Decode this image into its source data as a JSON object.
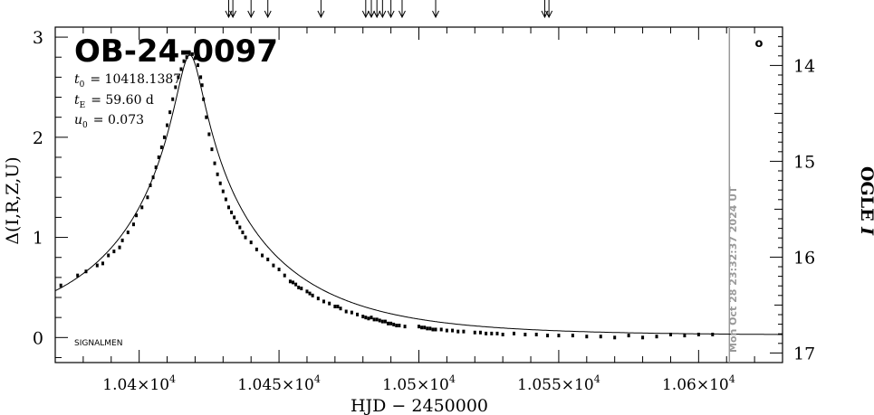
{
  "chart_data": {
    "type": "scatter",
    "title": "OB-24-0097",
    "params": [
      {
        "sym": "t",
        "sub": "0",
        "value": "= 10418.1387"
      },
      {
        "sym": "t",
        "sub": "E",
        "value": "= 59.60 d"
      },
      {
        "sym": "u",
        "sub": "0",
        "value": "= 0.073"
      }
    ],
    "xlabel": "HJD − 2450000",
    "ylabel": "Δ(I,R,Z,U)",
    "y2label_text": "OGLE ",
    "y2label_italic": "I",
    "xlim": [
      10370,
      10630
    ],
    "ylim": [
      -0.25,
      3.1
    ],
    "y2lim": [
      13.6,
      17.1
    ],
    "x_ticks": [
      {
        "value": 10400,
        "mantissa": "1.04×10",
        "exp": "4"
      },
      {
        "value": 10450,
        "mantissa": "1.045×10",
        "exp": "4"
      },
      {
        "value": 10500,
        "mantissa": "1.05×10",
        "exp": "4"
      },
      {
        "value": 10550,
        "mantissa": "1.055×10",
        "exp": "4"
      },
      {
        "value": 10600,
        "mantissa": "1.06×10",
        "exp": "4"
      }
    ],
    "y_ticks": [
      0,
      1,
      2,
      3
    ],
    "y2_ticks": [
      14,
      15,
      16,
      17
    ],
    "now_label": "Mon Oct 28 23:32:37 2024 UT",
    "now_x": 10611,
    "footer_label": "SIGNALMEN",
    "legend_marker": "o",
    "arrows_x": [
      10432,
      10433.5,
      10440,
      10446,
      10465,
      10481,
      10483,
      10485,
      10487,
      10490,
      10494,
      10506,
      10545,
      10546.5
    ],
    "model": {
      "t0": 10418.1387,
      "tE": 59.6,
      "u0": 0.073,
      "baseline": 0.02
    },
    "points": [
      [
        10372,
        0.52
      ],
      [
        10378,
        0.62
      ],
      [
        10381,
        0.66
      ],
      [
        10385,
        0.72
      ],
      [
        10387,
        0.74
      ],
      [
        10389,
        0.82
      ],
      [
        10391,
        0.86
      ],
      [
        10393,
        0.9
      ],
      [
        10394,
        0.97
      ],
      [
        10396,
        1.05
      ],
      [
        10398,
        1.13
      ],
      [
        10399,
        1.22
      ],
      [
        10401,
        1.3
      ],
      [
        10403,
        1.4
      ],
      [
        10404,
        1.52
      ],
      [
        10405,
        1.6
      ],
      [
        10406,
        1.7
      ],
      [
        10407,
        1.8
      ],
      [
        10408,
        1.9
      ],
      [
        10409,
        2.0
      ],
      [
        10410,
        2.12
      ],
      [
        10411,
        2.25
      ],
      [
        10412,
        2.38
      ],
      [
        10413,
        2.5
      ],
      [
        10414,
        2.6
      ],
      [
        10415,
        2.68
      ],
      [
        10416,
        2.76
      ],
      [
        10417,
        2.8
      ],
      [
        10418,
        2.84
      ],
      [
        10419,
        2.83
      ],
      [
        10420,
        2.79
      ],
      [
        10421,
        2.72
      ],
      [
        10422,
        2.6
      ],
      [
        10422.5,
        2.52
      ],
      [
        10423,
        2.38
      ],
      [
        10424,
        2.2
      ],
      [
        10425,
        2.03
      ],
      [
        10426,
        1.88
      ],
      [
        10427,
        1.74
      ],
      [
        10428,
        1.63
      ],
      [
        10429,
        1.54
      ],
      [
        10430,
        1.46
      ],
      [
        10431,
        1.38
      ],
      [
        10432,
        1.3
      ],
      [
        10433,
        1.25
      ],
      [
        10434,
        1.2
      ],
      [
        10435,
        1.15
      ],
      [
        10436,
        1.1
      ],
      [
        10437,
        1.05
      ],
      [
        10438,
        1.0
      ],
      [
        10440,
        0.95
      ],
      [
        10442,
        0.88
      ],
      [
        10444,
        0.82
      ],
      [
        10446,
        0.78
      ],
      [
        10448,
        0.72
      ],
      [
        10450,
        0.68
      ],
      [
        10452,
        0.62
      ],
      [
        10454,
        0.56
      ],
      [
        10455,
        0.55
      ],
      [
        10456,
        0.53
      ],
      [
        10457,
        0.5
      ],
      [
        10458,
        0.49
      ],
      [
        10460,
        0.46
      ],
      [
        10461,
        0.44
      ],
      [
        10462,
        0.42
      ],
      [
        10464,
        0.39
      ],
      [
        10466,
        0.36
      ],
      [
        10468,
        0.34
      ],
      [
        10470,
        0.31
      ],
      [
        10471,
        0.31
      ],
      [
        10472,
        0.29
      ],
      [
        10474,
        0.26
      ],
      [
        10476,
        0.25
      ],
      [
        10478,
        0.23
      ],
      [
        10480,
        0.21
      ],
      [
        10481,
        0.2
      ],
      [
        10482,
        0.19
      ],
      [
        10483,
        0.2
      ],
      [
        10484,
        0.18
      ],
      [
        10485,
        0.18
      ],
      [
        10486,
        0.17
      ],
      [
        10487,
        0.16
      ],
      [
        10488,
        0.16
      ],
      [
        10489,
        0.14
      ],
      [
        10490,
        0.14
      ],
      [
        10491,
        0.13
      ],
      [
        10492,
        0.12
      ],
      [
        10493,
        0.12
      ],
      [
        10495,
        0.11
      ],
      [
        10500,
        0.11
      ],
      [
        10501,
        0.1
      ],
      [
        10502,
        0.1
      ],
      [
        10503,
        0.09
      ],
      [
        10504,
        0.09
      ],
      [
        10505,
        0.08
      ],
      [
        10506,
        0.08
      ],
      [
        10508,
        0.08
      ],
      [
        10510,
        0.07
      ],
      [
        10512,
        0.07
      ],
      [
        10514,
        0.06
      ],
      [
        10516,
        0.06
      ],
      [
        10520,
        0.05
      ],
      [
        10522,
        0.05
      ],
      [
        10524,
        0.04
      ],
      [
        10526,
        0.04
      ],
      [
        10528,
        0.04
      ],
      [
        10530,
        0.03
      ],
      [
        10534,
        0.04
      ],
      [
        10538,
        0.03
      ],
      [
        10542,
        0.03
      ],
      [
        10546,
        0.02
      ],
      [
        10550,
        0.02
      ],
      [
        10555,
        0.02
      ],
      [
        10560,
        0.01
      ],
      [
        10565,
        0.01
      ],
      [
        10570,
        0.0
      ],
      [
        10575,
        0.02
      ],
      [
        10580,
        0.0
      ],
      [
        10585,
        0.01
      ],
      [
        10590,
        0.03
      ],
      [
        10595,
        0.02
      ],
      [
        10600,
        0.03
      ],
      [
        10605,
        0.03
      ]
    ]
  }
}
